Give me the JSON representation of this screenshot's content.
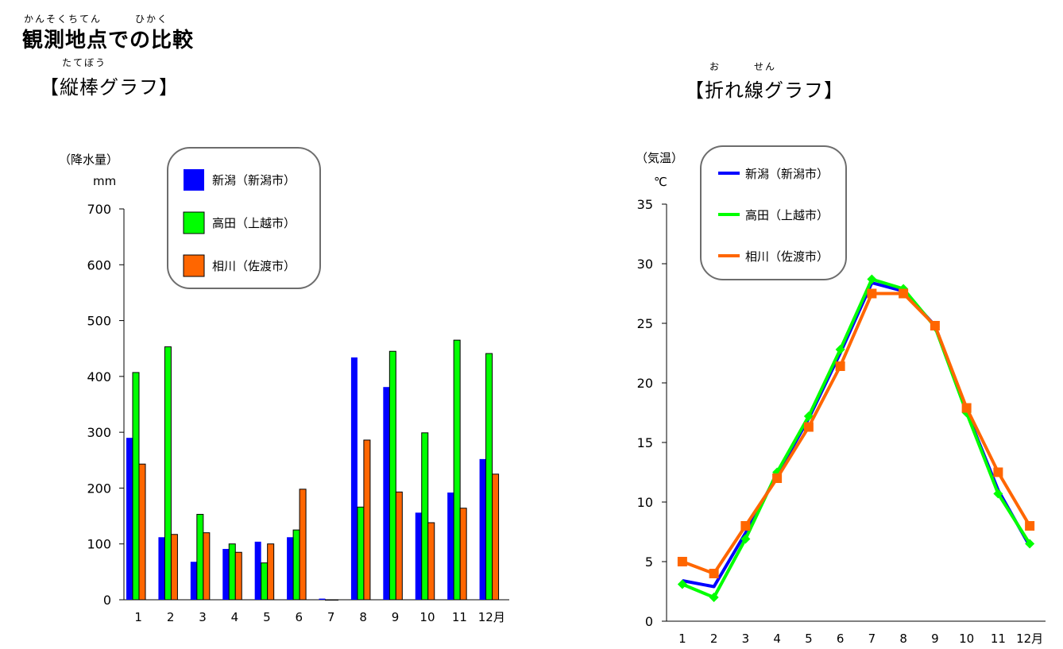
{
  "page": {
    "title_ruby": "かんそくちてん　　　ひかく",
    "title": "観測地点での比較"
  },
  "chart_data": [
    {
      "type": "bar",
      "title_ruby": "たてぼう",
      "title": "【縦棒グラフ】",
      "ylabel": "（降水量）",
      "yunit": "mm",
      "ylim": [
        0,
        700
      ],
      "yticks": [
        0,
        100,
        200,
        300,
        400,
        500,
        600,
        700
      ],
      "categories": [
        "1",
        "2",
        "3",
        "4",
        "5",
        "6",
        "7",
        "8",
        "9",
        "10",
        "11",
        "12月"
      ],
      "legend_placement": "top-center",
      "series": [
        {
          "name": "新潟（新潟市）",
          "color": "#0000ff",
          "values": [
            290,
            112,
            68,
            91,
            104,
            112,
            2,
            434,
            381,
            156,
            192,
            252
          ]
        },
        {
          "name": "高田（上越市）",
          "color": "#00ff00",
          "values": [
            407,
            453,
            153,
            100,
            66,
            125,
            0,
            166,
            445,
            299,
            465,
            441
          ]
        },
        {
          "name": "相川（佐渡市）",
          "color": "#ff6600",
          "values": [
            243,
            117,
            120,
            85,
            100,
            198,
            0,
            286,
            193,
            138,
            164,
            225
          ]
        }
      ]
    },
    {
      "type": "line",
      "title_ruby": "お　　　せん",
      "title": "【折れ線グラフ】",
      "ylabel": "（気温）",
      "yunit": "℃",
      "ylim": [
        0,
        35
      ],
      "yticks": [
        0,
        5,
        10,
        15,
        20,
        25,
        30,
        35
      ],
      "categories": [
        "1",
        "2",
        "3",
        "4",
        "5",
        "6",
        "7",
        "8",
        "9",
        "10",
        "11",
        "12月"
      ],
      "legend_placement": "top-left",
      "series": [
        {
          "name": "新潟（新潟市）",
          "color": "#0000ff",
          "marker": "none",
          "values": [
            3.4,
            2.9,
            7.4,
            12.3,
            17.0,
            22.5,
            28.4,
            27.7,
            24.8,
            17.6,
            11.0,
            6.3
          ]
        },
        {
          "name": "高田（上越市）",
          "color": "#00ff00",
          "marker": "diamond",
          "values": [
            3.1,
            2.0,
            6.9,
            12.5,
            17.2,
            22.8,
            28.7,
            27.9,
            24.7,
            17.5,
            10.7,
            6.5
          ]
        },
        {
          "name": "相川（佐渡市）",
          "color": "#ff6600",
          "marker": "square",
          "values": [
            5.0,
            4.0,
            8.0,
            12.0,
            16.3,
            21.4,
            27.5,
            27.5,
            24.8,
            17.9,
            12.5,
            8.0
          ]
        }
      ]
    }
  ]
}
